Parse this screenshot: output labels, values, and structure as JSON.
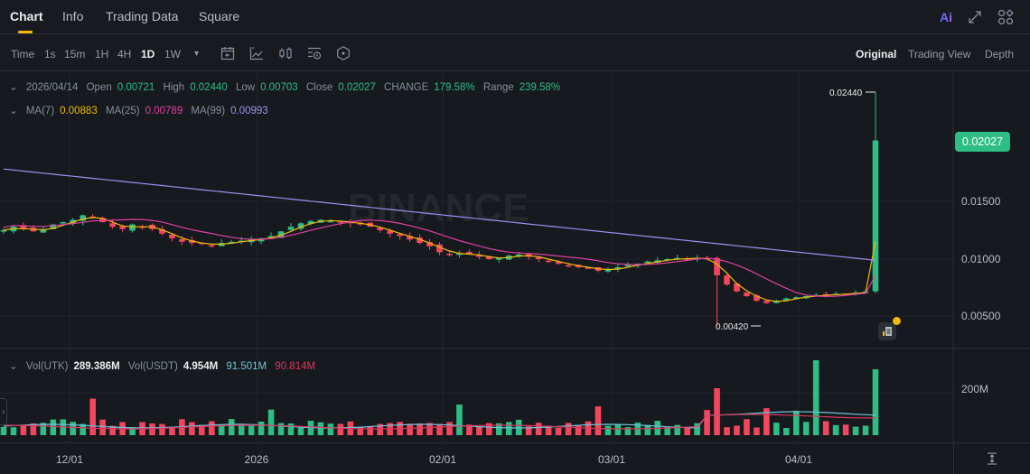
{
  "tabs": [
    {
      "label": "Chart",
      "active": true
    },
    {
      "label": "Info",
      "active": false
    },
    {
      "label": "Trading Data",
      "active": false
    },
    {
      "label": "Square",
      "active": false
    }
  ],
  "top_icons": [
    "ai-icon",
    "fullscreen-icon",
    "layout-grid-icon"
  ],
  "ai_label": "Ai",
  "toolbar": {
    "timeframes": [
      {
        "label": "Time",
        "active": false
      },
      {
        "label": "1s",
        "active": false
      },
      {
        "label": "15m",
        "active": false
      },
      {
        "label": "1H",
        "active": false
      },
      {
        "label": "4H",
        "active": false
      },
      {
        "label": "1D",
        "active": true
      },
      {
        "label": "1W",
        "active": false
      }
    ],
    "more_dropdown": "▾",
    "tools": [
      "date-range-icon",
      "indicator-icon",
      "candle-type-icon",
      "chart-settings-icon",
      "hexagon-settings-icon"
    ],
    "views": [
      {
        "label": "Original",
        "active": true
      },
      {
        "label": "Trading View",
        "active": false
      },
      {
        "label": "Depth",
        "active": false
      }
    ]
  },
  "ohlc": {
    "date": "2026/04/14",
    "open_label": "Open",
    "open": "0.00721",
    "high_label": "High",
    "high": "0.02440",
    "low_label": "Low",
    "low": "0.00703",
    "close_label": "Close",
    "close": "0.02027",
    "change_label": "CHANGE",
    "change": "179.58%",
    "range_label": "Range",
    "range": "239.58%"
  },
  "ma": {
    "ma7_label": "MA(7)",
    "ma7": "0.00883",
    "ma25_label": "MA(25)",
    "ma25": "0.00789",
    "ma99_label": "MA(99)",
    "ma99": "0.00993"
  },
  "volume": {
    "vol_base_label": "Vol(UTK)",
    "vol_base": "289.386M",
    "vol_quote_label": "Vol(USDT)",
    "vol_quote": "4.954M",
    "ma_a": "91.501M",
    "ma_b": "90.814M"
  },
  "current_price": "0.02027",
  "high_marker": "0.02440",
  "low_marker": "0.00420",
  "watermark": "BINANCE",
  "colors": {
    "up": "#2ebd85",
    "down": "#f6465d",
    "ma7": "#f0b90b",
    "ma25": "#e03fa4",
    "ma99": "#9e8ff0",
    "vol_ma_a": "#6fc3d9",
    "vol_ma_b": "#d6395f",
    "accent": "#f0b90b"
  },
  "chart_data": {
    "type": "candlestick",
    "title": "UTK/USDT 1D",
    "price_axis": {
      "ticks": [
        "0.01500",
        "0.01000",
        "0.00500"
      ],
      "range": [
        0.0035,
        0.0255
      ]
    },
    "volume_axis": {
      "ticks": [
        "200M"
      ]
    },
    "x_ticks": [
      "12/01",
      "2026",
      "02/01",
      "03/01",
      "04/01"
    ],
    "last_candle": {
      "date": "2026/04/14",
      "open": 0.00721,
      "high": 0.0244,
      "low": 0.00703,
      "close": 0.02027,
      "volume_m": 289.386
    },
    "annotations": {
      "period_high": 0.0244,
      "period_low": 0.0042
    },
    "moving_averages": {
      "MA7": 0.00883,
      "MA25": 0.00789,
      "MA99": 0.00993
    },
    "closes_approx": [
      0.0125,
      0.0128,
      0.0126,
      0.0124,
      0.0126,
      0.013,
      0.0132,
      0.0134,
      0.0138,
      0.0136,
      0.0132,
      0.0128,
      0.0126,
      0.013,
      0.0128,
      0.0126,
      0.0122,
      0.0118,
      0.0115,
      0.0114,
      0.0113,
      0.0112,
      0.0114,
      0.0115,
      0.0116,
      0.0117,
      0.0118,
      0.012,
      0.0124,
      0.0128,
      0.0131,
      0.0133,
      0.0134,
      0.0133,
      0.0132,
      0.0131,
      0.013,
      0.0128,
      0.0125,
      0.0122,
      0.012,
      0.0117,
      0.0114,
      0.0111,
      0.0106,
      0.0104,
      0.0105,
      0.0104,
      0.0102,
      0.01,
      0.0101,
      0.0103,
      0.0104,
      0.0102,
      0.01,
      0.0098,
      0.0096,
      0.0094,
      0.0093,
      0.0092,
      0.009,
      0.0091,
      0.0093,
      0.0095,
      0.0096,
      0.0098,
      0.0099,
      0.01,
      0.0101,
      0.01,
      0.0101,
      0.01,
      0.0086,
      0.0078,
      0.0072,
      0.0068,
      0.0064,
      0.0062,
      0.0064,
      0.0066,
      0.0067,
      0.0068,
      0.0069,
      0.0069,
      0.007,
      0.007,
      0.0071,
      0.0072,
      0.02027
    ]
  }
}
